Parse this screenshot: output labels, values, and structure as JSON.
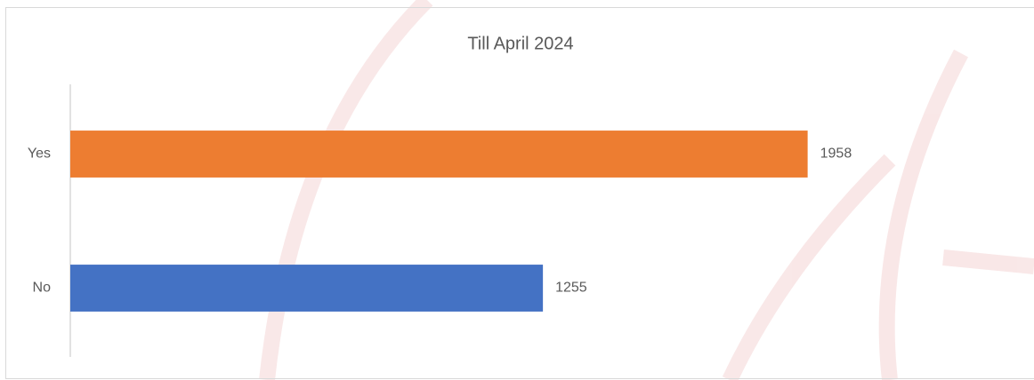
{
  "chart_data": {
    "type": "bar",
    "orientation": "horizontal",
    "title": "Till April 2024",
    "categories": [
      "Yes",
      "No"
    ],
    "values": [
      1958,
      1255
    ],
    "colors": [
      "#ed7d31",
      "#4472c4"
    ],
    "xlim": [
      0,
      2500
    ]
  }
}
